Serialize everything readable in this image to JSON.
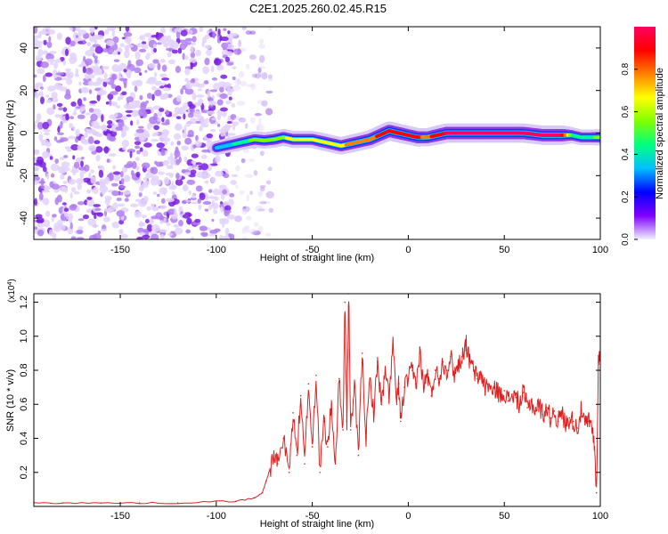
{
  "title": "C2E1.2025.260.02.45.R15",
  "colors": {
    "series": "#e02020",
    "axis": "#000000",
    "scatter": "#8a3be0",
    "colorbar_stops": [
      "#f0f0ff",
      "#8000ff",
      "#0000ff",
      "#00c0ff",
      "#00ff80",
      "#80ff00",
      "#ffff00",
      "#ff8000",
      "#ff0000",
      "#ff0060"
    ]
  },
  "chart_data": [
    {
      "type": "heatmap",
      "title": "",
      "xlabel": "Height of straight line (km)",
      "ylabel": "Frequency (Hz)",
      "xlim": [
        -195,
        100
      ],
      "ylim": [
        -50,
        50
      ],
      "xticks": [
        -150,
        -100,
        -50,
        0,
        50,
        100
      ],
      "yticks": [
        -40,
        -20,
        0,
        20,
        40
      ],
      "xtick_labels": [
        "-150",
        "-100",
        "-50",
        "0",
        "50",
        "100"
      ],
      "ytick_labels": [
        "-40",
        "-20",
        "0",
        "20",
        "40"
      ],
      "noise_region_x": [
        -195,
        -90
      ],
      "ridge": {
        "x": [
          -100,
          -95,
          -90,
          -85,
          -80,
          -75,
          -70,
          -65,
          -60,
          -55,
          -50,
          -45,
          -40,
          -35,
          -30,
          -25,
          -20,
          -15,
          -10,
          -5,
          0,
          5,
          10,
          15,
          20,
          30,
          40,
          50,
          60,
          70,
          80,
          85,
          90,
          95,
          100
        ],
        "freq": [
          -7,
          -6,
          -5,
          -4,
          -3,
          -3.5,
          -3,
          -2,
          -3,
          -3,
          -3,
          -4,
          -5,
          -6,
          -5,
          -4,
          -3,
          -1,
          1,
          0,
          -1,
          -2,
          -2,
          -1,
          0,
          0,
          0,
          0,
          0,
          -1,
          -1,
          -1,
          -2,
          -2,
          -2
        ],
        "amplitude": [
          0.3,
          0.35,
          0.4,
          0.45,
          0.55,
          0.55,
          0.6,
          0.6,
          0.65,
          0.65,
          0.65,
          0.7,
          0.7,
          0.7,
          0.75,
          0.75,
          0.8,
          0.85,
          0.9,
          0.9,
          0.85,
          0.85,
          0.8,
          0.9,
          0.95,
          0.95,
          0.95,
          0.95,
          0.95,
          0.95,
          0.95,
          0.5,
          0.45,
          0.45,
          0.6
        ]
      },
      "colorbar": {
        "label": "Normalized spectral amplitude",
        "range": [
          0,
          1
        ],
        "ticks": [
          0.0,
          0.2,
          0.4,
          0.6,
          0.8
        ],
        "tick_labels": [
          "0.0",
          "0.2",
          "0.4",
          "0.6",
          "0.8"
        ]
      }
    },
    {
      "type": "line",
      "title": "",
      "xlabel": "Height of straight line (km)",
      "ylabel": "SNR (10 * v/v)",
      "scale_label": "(x10",
      "scale_exponent": "4",
      "scale_close": ")",
      "xlim": [
        -195,
        100
      ],
      "ylim": [
        0,
        1.25
      ],
      "xticks": [
        -150,
        -100,
        -50,
        0,
        50,
        100
      ],
      "yticks": [
        0.2,
        0.4,
        0.6,
        0.8,
        1.0,
        1.2
      ],
      "xtick_labels": [
        "-150",
        "-100",
        "-50",
        "0",
        "50",
        "100"
      ],
      "ytick_labels": [
        "0.2",
        "0.4",
        "0.6",
        "0.8",
        "1.0",
        "1.2"
      ],
      "series": [
        {
          "name": "SNR",
          "x": [
            -195,
            -180,
            -160,
            -140,
            -120,
            -100,
            -90,
            -80,
            -76,
            -74,
            -72,
            -70,
            -68,
            -65,
            -62,
            -60,
            -58,
            -56,
            -54,
            -52,
            -50,
            -48,
            -46,
            -44,
            -42,
            -40,
            -38,
            -36,
            -34,
            -33,
            -32,
            -31,
            -30,
            -28,
            -26,
            -24,
            -22,
            -20,
            -18,
            -16,
            -14,
            -12,
            -10,
            -8,
            -6,
            -5,
            -4,
            -2,
            0,
            2,
            4,
            6,
            8,
            10,
            12,
            14,
            16,
            18,
            20,
            22,
            24,
            26,
            28,
            30,
            31,
            32,
            34,
            36,
            38,
            40,
            42,
            44,
            46,
            48,
            50,
            52,
            54,
            56,
            58,
            60,
            62,
            64,
            66,
            68,
            70,
            72,
            74,
            76,
            78,
            80,
            82,
            84,
            86,
            88,
            90,
            92,
            94,
            96,
            97,
            98,
            99,
            100
          ],
          "values": [
            0.02,
            0.02,
            0.02,
            0.02,
            0.02,
            0.03,
            0.03,
            0.05,
            0.08,
            0.15,
            0.22,
            0.3,
            0.25,
            0.4,
            0.2,
            0.55,
            0.3,
            0.65,
            0.25,
            0.72,
            0.35,
            0.77,
            0.2,
            0.5,
            0.35,
            0.6,
            0.25,
            0.75,
            0.45,
            1.2,
            0.5,
            1.25,
            0.45,
            0.7,
            0.3,
            0.9,
            0.4,
            0.75,
            0.55,
            0.85,
            0.6,
            0.78,
            0.65,
            0.95,
            0.6,
            0.72,
            0.5,
            0.7,
            0.75,
            0.8,
            0.72,
            0.9,
            0.7,
            0.78,
            0.65,
            0.8,
            0.75,
            0.85,
            0.8,
            0.88,
            0.78,
            0.83,
            0.88,
            0.96,
            0.9,
            0.85,
            0.8,
            0.75,
            0.78,
            0.7,
            0.72,
            0.66,
            0.7,
            0.64,
            0.68,
            0.62,
            0.66,
            0.64,
            0.6,
            0.67,
            0.58,
            0.62,
            0.56,
            0.6,
            0.54,
            0.58,
            0.52,
            0.56,
            0.5,
            0.55,
            0.48,
            0.52,
            0.5,
            0.46,
            0.56,
            0.48,
            0.5,
            0.44,
            0.35,
            0.08,
            0.85,
            0.9
          ]
        }
      ]
    }
  ]
}
